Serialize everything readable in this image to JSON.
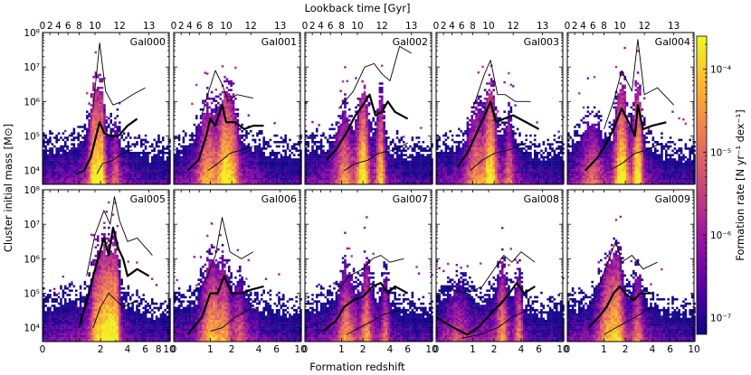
{
  "chart_data": {
    "type": "heatmap",
    "top_axis_label": "Lookback time [Gyr]",
    "top_ticks": [
      "0",
      "2",
      "4",
      "6",
      "8",
      "10",
      "12",
      "13"
    ],
    "top_tick_z": [
      0,
      0.15,
      0.35,
      0.62,
      1.0,
      1.7,
      3.3,
      6.5
    ],
    "xlabel": "Formation redshift",
    "x_ticks": [
      0,
      1,
      2,
      4,
      6,
      10
    ],
    "x_ticks_first_column": [
      0,
      2,
      4,
      6,
      8,
      10
    ],
    "ylabel": "Cluster initial mass [M⊙]",
    "y_ticks": [
      "10⁴",
      "10⁵",
      "10⁶",
      "10⁷",
      "10⁸"
    ],
    "ylim_log10": [
      3.6,
      8.0
    ],
    "colorbar": {
      "label": "Formation rate [N yr⁻¹ dex⁻¹]",
      "tick_labels": [
        "10⁻⁷",
        "10⁻⁶",
        "10⁻⁵",
        "10⁻⁴"
      ],
      "range_log10": [
        -7.2,
        -3.6
      ],
      "colormap": [
        "#0d0887",
        "#5c01a6",
        "#9c179e",
        "#cc4778",
        "#ed7953",
        "#fdb42f",
        "#f0f921"
      ]
    },
    "panels": [
      {
        "name": "Gal000",
        "peaks": [
          [
            1.9,
            1.0
          ],
          [
            1.7,
            0.4
          ],
          [
            3.0,
            0.3
          ]
        ],
        "median": [
          [
            0.9,
            3.9
          ],
          [
            1.2,
            4.0
          ],
          [
            1.5,
            4.4
          ],
          [
            1.8,
            5.1
          ],
          [
            1.95,
            5.4
          ],
          [
            2.2,
            5.1
          ],
          [
            2.6,
            5.0
          ],
          [
            3.2,
            5.0
          ],
          [
            4.0,
            5.3
          ],
          [
            5.0,
            5.5
          ]
        ],
        "upper": [
          [
            1.6,
            5.8
          ],
          [
            1.8,
            6.9
          ],
          [
            1.95,
            7.7
          ],
          [
            2.3,
            6.3
          ],
          [
            2.8,
            5.9
          ],
          [
            3.5,
            6.0
          ],
          [
            4.5,
            6.2
          ],
          [
            6.0,
            6.4
          ]
        ],
        "lower": [
          [
            1.8,
            3.9
          ],
          [
            2.1,
            4.2
          ],
          [
            2.8,
            4.3
          ],
          [
            3.5,
            4.5
          ],
          [
            4.5,
            4.6
          ]
        ]
      },
      {
        "name": "Gal001",
        "peaks": [
          [
            0.9,
            0.6
          ],
          [
            1.6,
            0.7
          ],
          [
            2.1,
            0.5
          ]
        ],
        "median": [
          [
            0.3,
            4.0
          ],
          [
            0.6,
            4.3
          ],
          [
            0.85,
            5.0
          ],
          [
            1.0,
            5.5
          ],
          [
            1.2,
            5.3
          ],
          [
            1.5,
            5.9
          ],
          [
            1.7,
            5.4
          ],
          [
            2.2,
            5.4
          ],
          [
            2.8,
            5.2
          ],
          [
            3.5,
            5.3
          ],
          [
            4.5,
            5.3
          ]
        ],
        "upper": [
          [
            0.7,
            5.6
          ],
          [
            0.9,
            6.2
          ],
          [
            1.2,
            6.9
          ],
          [
            1.5,
            6.5
          ],
          [
            1.8,
            6.0
          ],
          [
            2.3,
            6.2
          ],
          [
            3.5,
            6.1
          ]
        ],
        "lower": [
          [
            0.9,
            4.0
          ],
          [
            1.3,
            4.2
          ],
          [
            1.9,
            4.5
          ],
          [
            2.6,
            4.6
          ],
          [
            3.5,
            4.7
          ]
        ]
      },
      {
        "name": "Gal002",
        "peaks": [
          [
            1.1,
            0.5
          ],
          [
            2.0,
            0.8
          ],
          [
            3.2,
            0.7
          ]
        ],
        "median": [
          [
            0.5,
            4.3
          ],
          [
            0.8,
            4.6
          ],
          [
            1.2,
            5.1
          ],
          [
            1.6,
            5.6
          ],
          [
            2.0,
            5.9
          ],
          [
            2.4,
            6.2
          ],
          [
            2.8,
            5.6
          ],
          [
            3.3,
            5.7
          ],
          [
            3.8,
            6.0
          ],
          [
            4.5,
            5.7
          ],
          [
            6.0,
            5.5
          ]
        ],
        "upper": [
          [
            0.9,
            5.8
          ],
          [
            1.5,
            6.3
          ],
          [
            2.1,
            7.0
          ],
          [
            2.7,
            7.1
          ],
          [
            3.3,
            6.8
          ],
          [
            4.0,
            6.6
          ],
          [
            5.0,
            7.6
          ],
          [
            6.5,
            7.4
          ]
        ],
        "lower": [
          [
            1.1,
            4.0
          ],
          [
            1.6,
            4.2
          ],
          [
            2.3,
            4.3
          ],
          [
            3.0,
            4.5
          ],
          [
            4.5,
            4.6
          ],
          [
            6.0,
            4.8
          ]
        ]
      },
      {
        "name": "Gal003",
        "peaks": [
          [
            1.1,
            0.5
          ],
          [
            1.8,
            0.8
          ],
          [
            3.0,
            0.4
          ]
        ],
        "median": [
          [
            0.5,
            4.1
          ],
          [
            0.8,
            4.5
          ],
          [
            1.1,
            5.0
          ],
          [
            1.5,
            5.6
          ],
          [
            1.8,
            6.0
          ],
          [
            2.1,
            5.4
          ],
          [
            2.6,
            5.5
          ],
          [
            3.3,
            5.6
          ],
          [
            4.5,
            5.4
          ],
          [
            6.0,
            5.2
          ]
        ],
        "upper": [
          [
            1.0,
            5.8
          ],
          [
            1.5,
            6.8
          ],
          [
            1.8,
            7.2
          ],
          [
            2.2,
            6.2
          ],
          [
            2.7,
            6.2
          ],
          [
            3.5,
            6.0
          ],
          [
            5.0,
            6.0
          ]
        ],
        "lower": [
          [
            0.9,
            4.0
          ],
          [
            1.4,
            4.3
          ],
          [
            2.0,
            4.5
          ],
          [
            3.0,
            4.6
          ],
          [
            4.5,
            4.8
          ]
        ]
      },
      {
        "name": "Gal004",
        "peaks": [
          [
            0.6,
            0.4
          ],
          [
            1.8,
            0.9
          ],
          [
            2.8,
            0.9
          ]
        ],
        "median": [
          [
            0.4,
            4.0
          ],
          [
            0.8,
            4.4
          ],
          [
            1.1,
            4.8
          ],
          [
            1.4,
            5.2
          ],
          [
            1.8,
            5.8
          ],
          [
            2.2,
            5.4
          ],
          [
            2.6,
            5.0
          ],
          [
            2.8,
            5.9
          ],
          [
            3.2,
            5.2
          ],
          [
            4.0,
            5.3
          ],
          [
            5.5,
            5.4
          ]
        ],
        "upper": [
          [
            1.0,
            5.2
          ],
          [
            1.4,
            6.0
          ],
          [
            1.8,
            6.9
          ],
          [
            2.4,
            6.3
          ],
          [
            2.8,
            7.8
          ],
          [
            3.3,
            6.2
          ],
          [
            4.5,
            6.4
          ],
          [
            6.5,
            5.9
          ]
        ],
        "lower": [
          [
            1.2,
            4.0
          ],
          [
            1.8,
            4.2
          ],
          [
            2.6,
            4.5
          ],
          [
            3.5,
            4.6
          ],
          [
            5.0,
            4.8
          ]
        ]
      },
      {
        "name": "Gal005",
        "peaks": [
          [
            1.8,
            0.6
          ],
          [
            2.4,
            0.9
          ],
          [
            3.0,
            0.8
          ]
        ],
        "median": [
          [
            1.0,
            4.0
          ],
          [
            1.4,
            5.0
          ],
          [
            1.8,
            5.9
          ],
          [
            2.2,
            6.6
          ],
          [
            2.5,
            6.1
          ],
          [
            2.8,
            6.9
          ],
          [
            3.2,
            6.3
          ],
          [
            3.6,
            6.0
          ],
          [
            4.0,
            5.5
          ],
          [
            5.0,
            5.7
          ],
          [
            6.5,
            5.5
          ]
        ],
        "upper": [
          [
            1.3,
            5.5
          ],
          [
            1.7,
            6.7
          ],
          [
            2.2,
            7.4
          ],
          [
            2.6,
            7.0
          ],
          [
            2.9,
            7.8
          ],
          [
            3.3,
            7.1
          ],
          [
            4.0,
            6.5
          ],
          [
            5.0,
            6.6
          ],
          [
            7.0,
            6.1
          ]
        ],
        "lower": [
          [
            1.6,
            4.0
          ],
          [
            2.0,
            4.6
          ],
          [
            2.5,
            5.0
          ],
          [
            3.0,
            4.8
          ],
          [
            3.6,
            4.6
          ],
          [
            5.0,
            4.8
          ]
        ]
      },
      {
        "name": "Gal006",
        "peaks": [
          [
            1.0,
            0.6
          ],
          [
            1.6,
            0.5
          ],
          [
            2.5,
            0.3
          ]
        ],
        "median": [
          [
            0.3,
            3.8
          ],
          [
            0.7,
            4.3
          ],
          [
            1.0,
            5.0
          ],
          [
            1.3,
            5.0
          ],
          [
            1.6,
            5.5
          ],
          [
            2.0,
            5.0
          ],
          [
            2.6,
            5.0
          ],
          [
            3.3,
            5.1
          ],
          [
            4.5,
            5.2
          ]
        ],
        "upper": [
          [
            0.8,
            5.3
          ],
          [
            1.2,
            6.1
          ],
          [
            1.5,
            7.2
          ],
          [
            1.9,
            6.2
          ],
          [
            2.6,
            6.0
          ],
          [
            3.5,
            6.2
          ]
        ],
        "lower": [
          [
            1.0,
            3.9
          ],
          [
            1.5,
            4.0
          ],
          [
            2.2,
            4.3
          ],
          [
            3.0,
            4.5
          ],
          [
            4.0,
            4.6
          ]
        ]
      },
      {
        "name": "Gal007",
        "peaks": [
          [
            1.2,
            0.5
          ],
          [
            2.2,
            0.5
          ],
          [
            3.6,
            0.4
          ]
        ],
        "median": [
          [
            0.4,
            3.9
          ],
          [
            0.8,
            4.2
          ],
          [
            1.1,
            4.6
          ],
          [
            1.5,
            4.8
          ],
          [
            2.0,
            4.9
          ],
          [
            2.6,
            5.2
          ],
          [
            3.2,
            5.3
          ],
          [
            3.8,
            5.0
          ],
          [
            4.5,
            5.2
          ],
          [
            6.0,
            5.0
          ]
        ],
        "upper": [
          [
            0.8,
            5.0
          ],
          [
            1.3,
            5.5
          ],
          [
            2.0,
            5.7
          ],
          [
            2.6,
            6.0
          ],
          [
            3.2,
            6.1
          ],
          [
            4.0,
            5.9
          ],
          [
            5.5,
            6.0
          ]
        ],
        "lower": [
          [
            1.2,
            3.8
          ],
          [
            1.8,
            4.0
          ],
          [
            2.6,
            4.2
          ],
          [
            3.5,
            4.4
          ],
          [
            5.0,
            4.5
          ]
        ]
      },
      {
        "name": "Gal008",
        "peaks": [
          [
            0.5,
            0.3
          ],
          [
            2.5,
            0.5
          ],
          [
            3.8,
            0.5
          ]
        ],
        "median": [
          [
            0.0,
            4.3
          ],
          [
            0.4,
            4.0
          ],
          [
            0.8,
            3.8
          ],
          [
            1.2,
            4.0
          ],
          [
            1.8,
            4.4
          ],
          [
            2.4,
            4.7
          ],
          [
            3.0,
            5.0
          ],
          [
            3.6,
            5.3
          ],
          [
            4.3,
            5.0
          ],
          [
            5.5,
            5.2
          ]
        ],
        "upper": [
          [
            0.3,
            5.1
          ],
          [
            0.8,
            5.0
          ],
          [
            1.4,
            5.2
          ],
          [
            2.0,
            5.7
          ],
          [
            2.6,
            6.1
          ],
          [
            3.2,
            5.9
          ],
          [
            4.0,
            6.2
          ],
          [
            5.5,
            5.9
          ]
        ],
        "lower": [
          [
            0.6,
            3.7
          ],
          [
            1.3,
            3.8
          ],
          [
            2.2,
            4.0
          ],
          [
            3.2,
            4.3
          ],
          [
            4.5,
            4.5
          ]
        ]
      },
      {
        "name": "Gal009",
        "peaks": [
          [
            1.1,
            0.5
          ],
          [
            1.6,
            0.6
          ],
          [
            2.8,
            0.4
          ]
        ],
        "median": [
          [
            0.5,
            4.0
          ],
          [
            0.8,
            4.3
          ],
          [
            1.1,
            4.6
          ],
          [
            1.4,
            5.0
          ],
          [
            1.7,
            5.2
          ],
          [
            2.0,
            5.0
          ],
          [
            2.5,
            4.8
          ],
          [
            3.0,
            5.0
          ],
          [
            4.0,
            5.0
          ]
        ],
        "upper": [
          [
            0.8,
            5.2
          ],
          [
            1.1,
            5.8
          ],
          [
            1.5,
            6.5
          ],
          [
            1.8,
            5.9
          ],
          [
            2.4,
            6.1
          ],
          [
            3.2,
            5.7
          ],
          [
            4.5,
            5.9
          ]
        ],
        "lower": [
          [
            1.0,
            3.8
          ],
          [
            1.5,
            4.0
          ],
          [
            2.2,
            4.2
          ],
          [
            3.0,
            4.4
          ],
          [
            4.0,
            4.6
          ]
        ]
      }
    ]
  }
}
